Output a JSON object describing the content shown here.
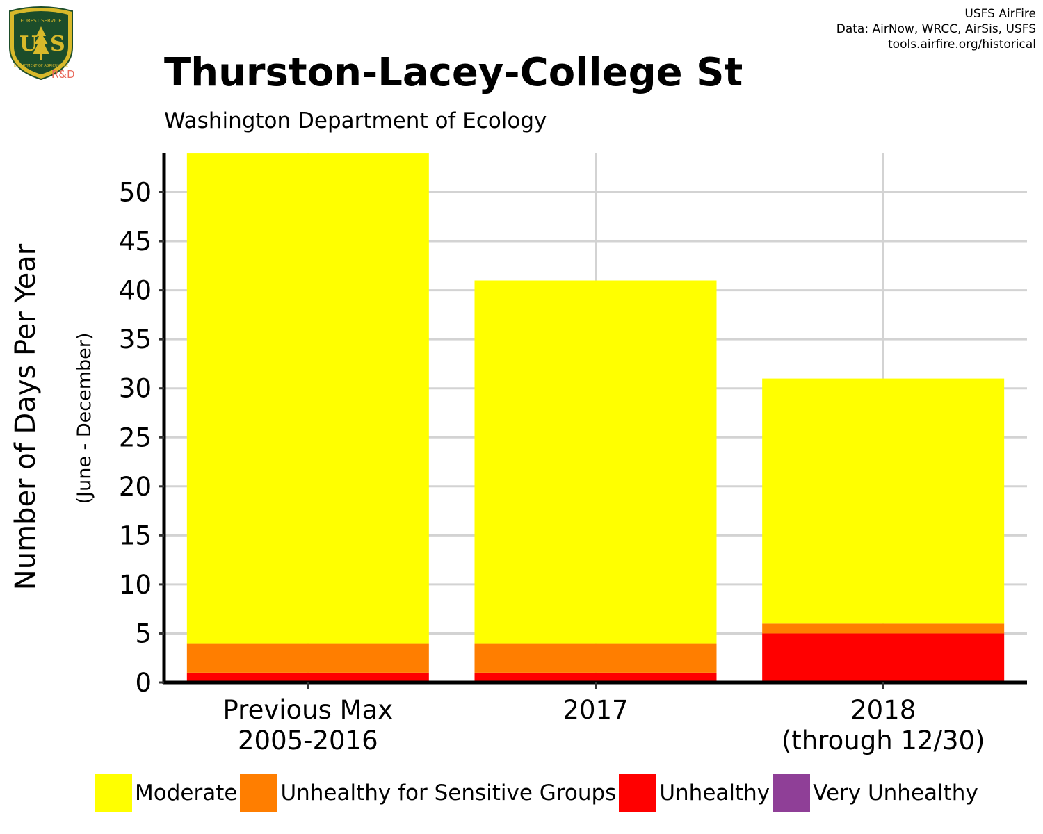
{
  "logo": {
    "top_text": "FOREST SERVICE",
    "bottom_text": "DEPARTMENT OF AGRICULTURE",
    "letters": "US",
    "rd_label": "R&D",
    "colors": {
      "shield": "#1c4d2a",
      "border": "#d8b92a",
      "text": "#d8b92a"
    }
  },
  "credits": [
    "USFS AirFire",
    "Data: AirNow, WRCC, AirSis, USFS",
    "tools.airfire.org/historical"
  ],
  "header": {
    "title": "Thurston-Lacey-College St",
    "subtitle": "Washington Department of Ecology"
  },
  "chart_data": {
    "type": "bar",
    "stacked": true,
    "title": "Thurston-Lacey-College St",
    "subtitle": "Washington Department of Ecology",
    "ylabel": "Number of Days Per Year",
    "ylabel_sub": "(June - December)",
    "xlabel": "",
    "categories": [
      [
        "Previous Max",
        "2005-2016"
      ],
      [
        "2017"
      ],
      [
        "2018",
        "(through 12/30)"
      ]
    ],
    "series": [
      {
        "name": "Unhealthy",
        "color": "#ff0000",
        "values": [
          1,
          1,
          5
        ]
      },
      {
        "name": "Unhealthy for Sensitive Groups",
        "color": "#ff7e00",
        "values": [
          3,
          3,
          1
        ]
      },
      {
        "name": "Moderate",
        "color": "#ffff00",
        "values": [
          50,
          37,
          25
        ]
      },
      {
        "name": "Very Unhealthy",
        "color": "#8f3f97",
        "values": [
          0,
          0,
          0
        ]
      }
    ],
    "yticks": [
      0,
      5,
      10,
      15,
      20,
      25,
      30,
      35,
      40,
      45,
      50
    ],
    "ylim": [
      0,
      54
    ],
    "grid": true,
    "legend_position": "bottom",
    "grid_color": "#d3d3d3"
  },
  "legend": [
    {
      "label": "Moderate",
      "color": "#ffff00"
    },
    {
      "label": "Unhealthy for Sensitive Groups",
      "color": "#ff7e00"
    },
    {
      "label": "Unhealthy",
      "color": "#ff0000"
    },
    {
      "label": "Very Unhealthy",
      "color": "#8f3f97"
    }
  ]
}
